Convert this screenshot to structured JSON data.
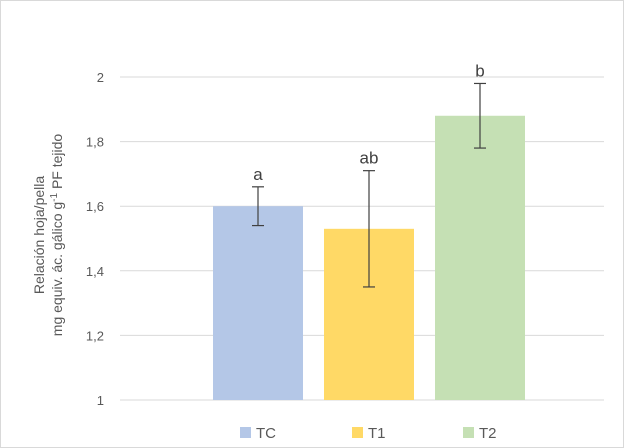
{
  "chart_data": {
    "type": "bar",
    "categories": [
      "TC",
      "T1",
      "T2"
    ],
    "values": [
      1.6,
      1.53,
      1.88
    ],
    "error_low": [
      1.54,
      1.35,
      1.78
    ],
    "error_high": [
      1.66,
      1.71,
      1.98
    ],
    "significance": [
      "a",
      "ab",
      "b"
    ],
    "colors": [
      "#b4c7e7",
      "#ffd966",
      "#c5e0b4"
    ],
    "ylim": [
      1,
      2
    ],
    "yticks": [
      1,
      1.2,
      1.4,
      1.6,
      1.8,
      2
    ],
    "ytick_labels": [
      "1",
      "1,2",
      "1,4",
      "1,6",
      "1,8",
      "2"
    ],
    "ylabel_line1": "Relación hoja/pella",
    "ylabel_line2_main": "mg equiv. ác. gálico  g",
    "ylabel_line2_sup": "-1",
    "ylabel_line2_end": " PF tejido",
    "grid": true,
    "legend_position": "bottom",
    "legend": [
      "TC",
      "T1",
      "T2"
    ]
  }
}
